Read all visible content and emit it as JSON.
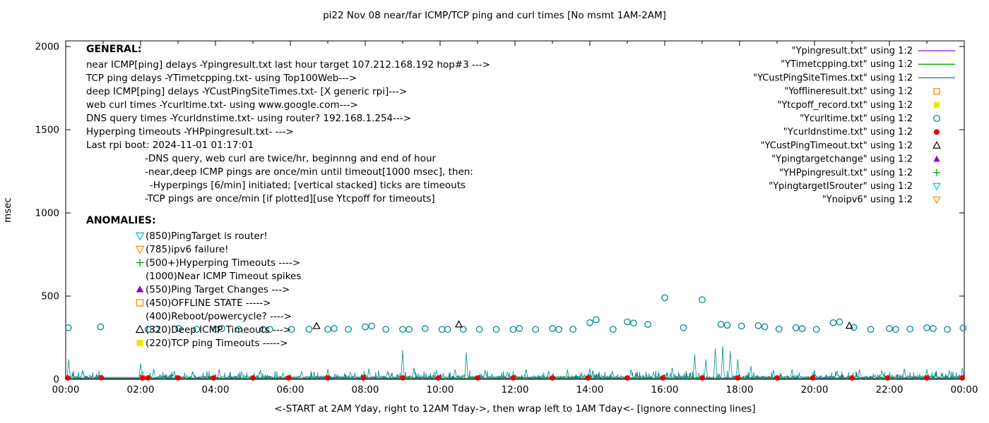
{
  "chart_data": {
    "type": "line",
    "title": "pi22 Nov 08  near/far ICMP/TCP ping and curl times [No msmt 1AM-2AM]",
    "xlabel": "<-START at 2AM Yday, right to 12AM Tday->, then wrap left to 1AM Tday<- [ignore connecting lines]",
    "ylabel": "msec",
    "ylim": [
      0,
      2000
    ],
    "yticks": [
      0,
      500,
      1000,
      1500,
      2000
    ],
    "xlim_hours": [
      0,
      24
    ],
    "xticks": [
      "00:00",
      "02:00",
      "04:00",
      "06:00",
      "08:00",
      "10:00",
      "12:00",
      "14:00",
      "16:00",
      "18:00",
      "20:00",
      "22:00",
      "00:00"
    ],
    "grid": false,
    "legend_position": "top-right",
    "legend": [
      {
        "label": "\"Ypingresult.txt\" using 1:2",
        "sample": "line",
        "color": "#9400d3"
      },
      {
        "label": "\"YTimetcpping.txt\" using 1:2",
        "sample": "line",
        "color": "#00a000"
      },
      {
        "label": "\"YCustPingSiteTimes.txt\" using 1:2",
        "sample": "line",
        "color": "#008b8b"
      },
      {
        "label": "\"Yofflineresult.txt\" using 1:2",
        "sample": "square-open",
        "color": "#ff8c00"
      },
      {
        "label": "\"Ytcpoff_record.txt\" using 1:2",
        "sample": "square-filled",
        "color": "#e8e800"
      },
      {
        "label": "\"Ycurltime.txt\" using 1:2",
        "sample": "circle-open",
        "color": "#008b8b"
      },
      {
        "label": "\"Ycurldnstime.txt\" using 1:2",
        "sample": "circle-filled",
        "color": "#e60000"
      },
      {
        "label": "\"YCustPingTimeout.txt\" using 1:2",
        "sample": "triangle-up-open",
        "color": "#000000"
      },
      {
        "label": "\"Ypingtargetchange\" using 1:2",
        "sample": "triangle-up-filled",
        "color": "#9400d3"
      },
      {
        "label": "\"YHPpingresult.txt\" using 1:2",
        "sample": "plus",
        "color": "#00a000"
      },
      {
        "label": "\"YpingtargetISrouter\" using 1:2",
        "sample": "triangle-down-open",
        "color": "#00c0c0"
      },
      {
        "label": "\"Ynoipv6\" using 1:2",
        "sample": "triangle-down-open",
        "color": "#ff8c00"
      }
    ],
    "series": [
      {
        "name": "Ypingresult",
        "style": "line",
        "color": "#9400d3",
        "baseline": {
          "base": 4,
          "amp": 7,
          "seed": 11
        }
      },
      {
        "name": "YTimetcpping",
        "style": "line",
        "color": "#00a000",
        "baseline": {
          "base": 7,
          "amp": 12,
          "seed": 23
        }
      },
      {
        "name": "YCustPingSiteTimes",
        "style": "line",
        "color": "#008b8b",
        "baseline": {
          "base": 12,
          "amp": 30,
          "seed": 5
        },
        "spikes": [
          [
            0.08,
            120
          ],
          [
            0.45,
            55
          ],
          [
            2.0,
            95
          ],
          [
            2.35,
            60
          ],
          [
            2.9,
            50
          ],
          [
            3.4,
            45
          ],
          [
            4.1,
            60
          ],
          [
            4.7,
            45
          ],
          [
            5.2,
            55
          ],
          [
            5.8,
            40
          ],
          [
            6.3,
            50
          ],
          [
            7.0,
            60
          ],
          [
            7.6,
            45
          ],
          [
            8.1,
            65
          ],
          [
            8.6,
            50
          ],
          [
            9.0,
            175
          ],
          [
            9.3,
            70
          ],
          [
            9.9,
            55
          ],
          [
            10.4,
            60
          ],
          [
            10.7,
            160
          ],
          [
            11.2,
            55
          ],
          [
            11.8,
            45
          ],
          [
            12.3,
            60
          ],
          [
            12.9,
            50
          ],
          [
            13.4,
            55
          ],
          [
            14.0,
            65
          ],
          [
            14.6,
            50
          ],
          [
            15.1,
            60
          ],
          [
            15.7,
            45
          ],
          [
            16.2,
            70
          ],
          [
            16.8,
            150
          ],
          [
            17.1,
            120
          ],
          [
            17.35,
            185
          ],
          [
            17.55,
            200
          ],
          [
            17.75,
            170
          ],
          [
            17.95,
            120
          ],
          [
            18.3,
            80
          ],
          [
            18.9,
            55
          ],
          [
            19.4,
            60
          ],
          [
            20.0,
            55
          ],
          [
            20.6,
            50
          ],
          [
            21.2,
            60
          ],
          [
            21.8,
            50
          ],
          [
            22.4,
            65
          ],
          [
            23.0,
            60
          ],
          [
            23.6,
            55
          ],
          [
            23.95,
            70
          ]
        ]
      },
      {
        "name": "Ycurltime",
        "style": "circle-open",
        "color": "#008b8b",
        "points": [
          [
            0.07,
            310
          ],
          [
            0.93,
            315
          ],
          [
            2.2,
            300
          ],
          [
            2.42,
            300
          ],
          [
            3.02,
            305
          ],
          [
            3.5,
            300
          ],
          [
            4.0,
            300
          ],
          [
            4.17,
            305
          ],
          [
            4.62,
            300
          ],
          [
            5.28,
            300
          ],
          [
            5.45,
            300
          ],
          [
            6.03,
            300
          ],
          [
            6.5,
            300
          ],
          [
            7.0,
            300
          ],
          [
            7.17,
            305
          ],
          [
            7.55,
            300
          ],
          [
            8.0,
            315
          ],
          [
            8.17,
            320
          ],
          [
            8.55,
            300
          ],
          [
            9.0,
            300
          ],
          [
            9.17,
            300
          ],
          [
            9.6,
            305
          ],
          [
            10.05,
            300
          ],
          [
            10.2,
            300
          ],
          [
            10.62,
            300
          ],
          [
            11.05,
            300
          ],
          [
            11.5,
            300
          ],
          [
            11.95,
            300
          ],
          [
            12.12,
            305
          ],
          [
            12.55,
            300
          ],
          [
            13.0,
            305
          ],
          [
            13.17,
            300
          ],
          [
            13.55,
            300
          ],
          [
            14.0,
            340
          ],
          [
            14.17,
            358
          ],
          [
            14.62,
            300
          ],
          [
            15.0,
            345
          ],
          [
            15.17,
            338
          ],
          [
            15.55,
            330
          ],
          [
            16.0,
            490
          ],
          [
            16.5,
            310
          ],
          [
            17.0,
            478
          ],
          [
            17.5,
            330
          ],
          [
            17.67,
            325
          ],
          [
            18.05,
            320
          ],
          [
            18.5,
            322
          ],
          [
            18.67,
            315
          ],
          [
            19.05,
            302
          ],
          [
            19.5,
            310
          ],
          [
            19.67,
            305
          ],
          [
            20.05,
            300
          ],
          [
            20.5,
            340
          ],
          [
            20.67,
            345
          ],
          [
            21.05,
            312
          ],
          [
            21.5,
            300
          ],
          [
            22.0,
            305
          ],
          [
            22.17,
            300
          ],
          [
            22.55,
            302
          ],
          [
            23.0,
            310
          ],
          [
            23.17,
            305
          ],
          [
            23.55,
            300
          ],
          [
            23.97,
            308
          ]
        ]
      },
      {
        "name": "Ycurldnstime",
        "style": "circle-filled",
        "color": "#e60000",
        "points": [
          [
            0.05,
            8
          ],
          [
            0.95,
            10
          ],
          [
            2.05,
            8
          ],
          [
            2.2,
            8
          ],
          [
            3.0,
            8
          ],
          [
            3.95,
            8
          ],
          [
            5.0,
            8
          ],
          [
            5.95,
            8
          ],
          [
            7.0,
            8
          ],
          [
            7.95,
            8
          ],
          [
            9.0,
            8
          ],
          [
            9.95,
            8
          ],
          [
            11.0,
            8
          ],
          [
            11.95,
            8
          ],
          [
            13.0,
            8
          ],
          [
            13.95,
            8
          ],
          [
            15.0,
            8
          ],
          [
            15.95,
            8
          ],
          [
            17.0,
            8
          ],
          [
            17.95,
            8
          ],
          [
            19.0,
            8
          ],
          [
            19.95,
            8
          ],
          [
            21.0,
            8
          ],
          [
            21.95,
            8
          ],
          [
            23.0,
            8
          ],
          [
            23.95,
            8
          ]
        ]
      },
      {
        "name": "YCustPingTimeout",
        "style": "triangle-up-open",
        "color": "#000000",
        "points": [
          [
            6.7,
            320
          ],
          [
            10.5,
            330
          ],
          [
            20.93,
            322
          ]
        ]
      }
    ]
  },
  "general": {
    "heading": "GENERAL:",
    "lines": [
      {
        "indent": 0,
        "text": "near ICMP[ping] delays -Ypingresult.txt last hour target 107.212.168.192 hop#3 --->"
      },
      {
        "indent": 0,
        "text": "TCP ping delays -YTimetcpping.txt- using Top100Web--->"
      },
      {
        "indent": 0,
        "text": "deep ICMP[ping] delays -YCustPingSiteTimes.txt- [X generic rpi]--->"
      },
      {
        "indent": 0,
        "text": "web curl times -Ycurltime.txt- using www.google.com--->"
      },
      {
        "indent": 0,
        "text": "DNS query times -Ycurldnstime.txt- using router? 192.168.1.254--->"
      },
      {
        "indent": 0,
        "text": "Hyperping timeouts -YHPpingresult.txt- --->"
      },
      {
        "indent": 0,
        "text": "Last rpi boot: 2024-11-01 01:17:01"
      },
      {
        "indent": 1,
        "text": "-DNS query, web curl are twice/hr, beginnng and end of hour"
      },
      {
        "indent": 1,
        "text": "-near,deep ICMP pings are once/min until timeout[1000 msec], then:"
      },
      {
        "indent": 2,
        "text": "-Hyperpings [6/min] initiated; [vertical stacked] ticks are timeouts"
      },
      {
        "indent": 1,
        "text": "-TCP pings are once/min [if plotted][use Ytcpoff for timeouts]"
      }
    ]
  },
  "anomalies": {
    "heading": "ANOMALIES:",
    "items": [
      {
        "marker": "triangle-down-open",
        "color": "#00c0c0",
        "text": "(850)PingTarget is router!"
      },
      {
        "marker": "triangle-down-open",
        "color": "#ff8c00",
        "text": "(785)ipv6 failure!"
      },
      {
        "marker": "plus",
        "color": "#00a000",
        "text": "(500+)Hyperping Timeouts ---->"
      },
      {
        "marker": null,
        "color": null,
        "text": "(1000)Near ICMP Timeout spikes"
      },
      {
        "marker": "triangle-up-filled",
        "color": "#9400d3",
        "text": "(550)Ping Target Changes --->"
      },
      {
        "marker": "square-open",
        "color": "#ff8c00",
        "text": "(450)OFFLINE STATE ----->"
      },
      {
        "marker": null,
        "color": null,
        "text": "(400)Reboot/powercycle? ---->"
      },
      {
        "marker": "triangle-up-open",
        "color": "#000000",
        "text": "(320)Deep ICMP Timeouts --->"
      },
      {
        "marker": "square-filled",
        "color": "#e8e800",
        "text": "(220)TCP ping Timeouts ----->"
      }
    ]
  }
}
